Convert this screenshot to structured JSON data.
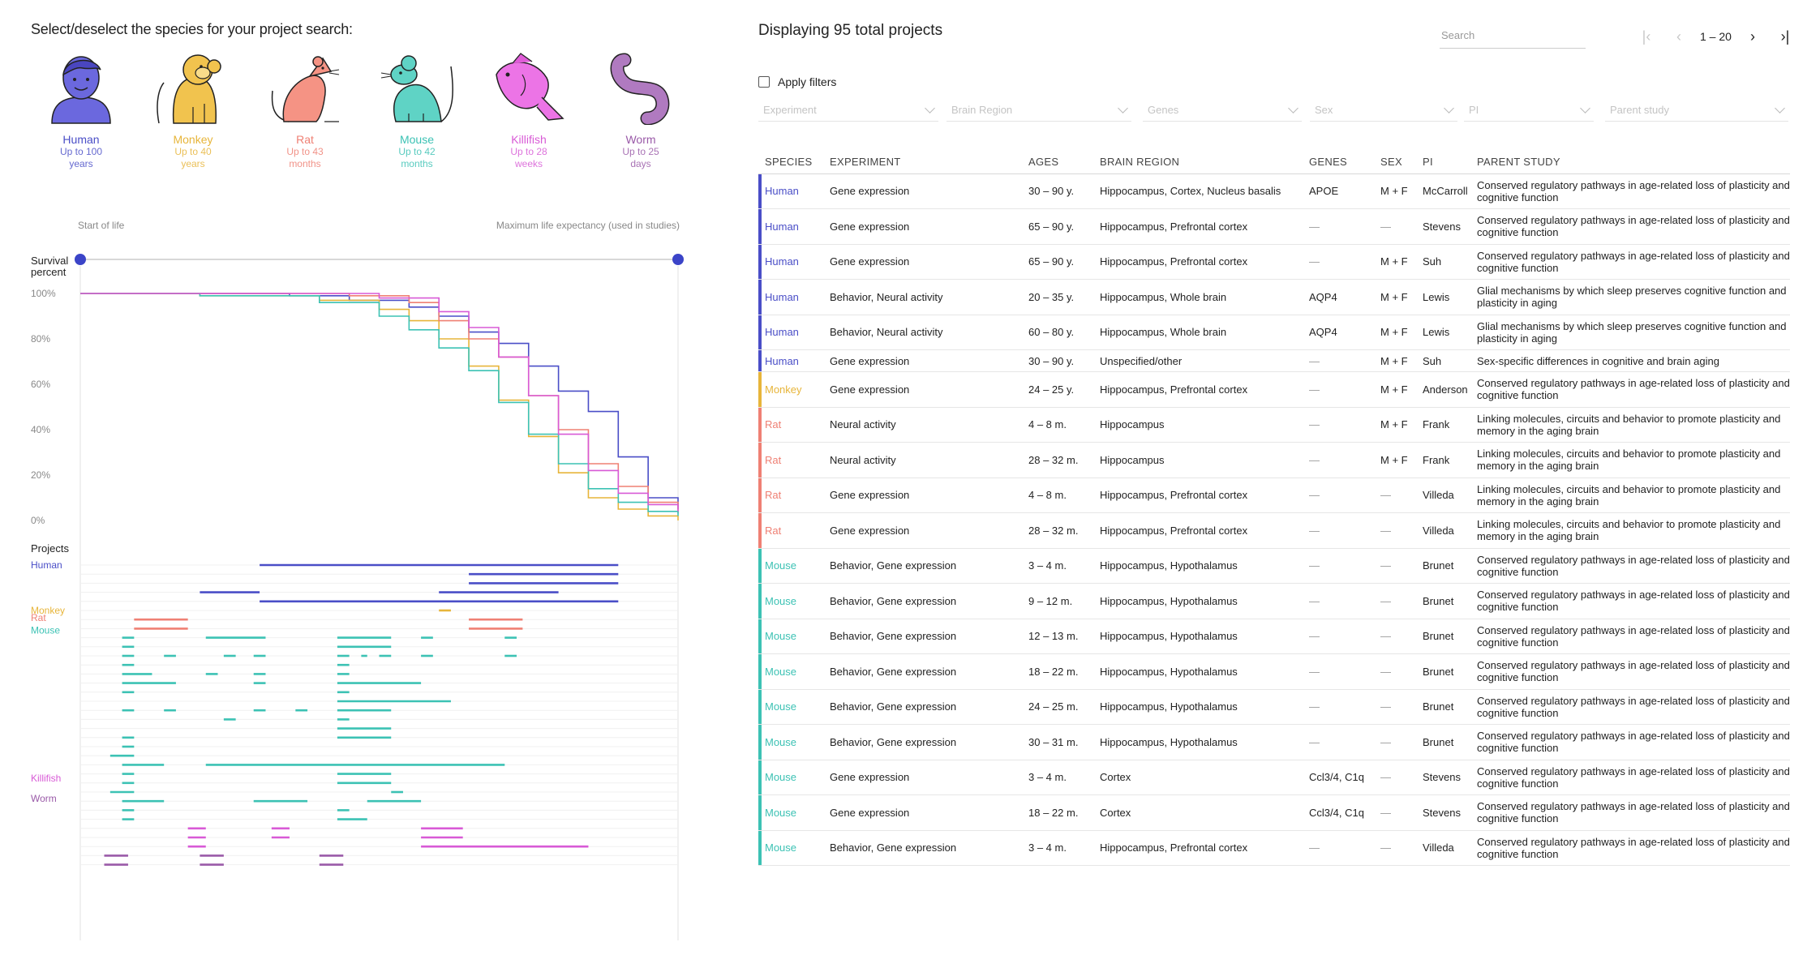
{
  "species_panel": {
    "prompt": "Select/deselect the species for your project search:",
    "species": [
      {
        "name": "Human",
        "line1": "Up to 100",
        "line2": "years",
        "color": "#4a4ec7",
        "icon": "human-icon"
      },
      {
        "name": "Monkey",
        "line1": "Up to 40",
        "line2": "years",
        "color": "#e7b53a",
        "icon": "monkey-icon"
      },
      {
        "name": "Rat",
        "line1": "Up to 43",
        "line2": "months",
        "color": "#ef8074",
        "icon": "rat-icon"
      },
      {
        "name": "Mouse",
        "line1": "Up to 42",
        "line2": "months",
        "color": "#3cc2b4",
        "icon": "mouse-icon"
      },
      {
        "name": "Killifish",
        "line1": "Up to 28",
        "line2": "weeks",
        "color": "#d85ad6",
        "icon": "killifish-icon"
      },
      {
        "name": "Worm",
        "line1": "Up to 25",
        "line2": "days",
        "color": "#9a5aa8",
        "icon": "worm-icon"
      }
    ]
  },
  "survival_chart": {
    "start_label": "Start of life",
    "end_label": "Maximum life expectancy (used in studies)",
    "y_title_1": "Survival",
    "y_title_2": "percent",
    "y_ticks": [
      "100%",
      "80%",
      "60%",
      "40%",
      "20%",
      "0%"
    ],
    "projects_label": "Projects",
    "lane_labels": [
      {
        "name": "Human",
        "color": "#4a4ec7"
      },
      {
        "name": "Monkey",
        "color": "#e7b53a"
      },
      {
        "name": "Rat",
        "color": "#ef8074"
      },
      {
        "name": "Mouse",
        "color": "#3cc2b4"
      },
      {
        "name": "Killifish",
        "color": "#d85ad6"
      },
      {
        "name": "Worm",
        "color": "#9a5aa8"
      }
    ]
  },
  "chart_data": {
    "type": "line",
    "title": "",
    "xlabel": "",
    "ylabel": "Survival percent",
    "xlim": [
      0,
      1
    ],
    "ylim": [
      0,
      100
    ],
    "series": [
      {
        "name": "Human",
        "color": "#4a4ec7",
        "x": [
          0,
          0.2,
          0.35,
          0.45,
          0.55,
          0.6,
          0.65,
          0.7,
          0.75,
          0.8,
          0.85,
          0.9,
          0.95,
          1.0
        ],
        "y": [
          100,
          100,
          99,
          97,
          94,
          90,
          83,
          78,
          68,
          57,
          48,
          28,
          10,
          5
        ]
      },
      {
        "name": "Monkey",
        "color": "#e7b53a",
        "x": [
          0,
          0.2,
          0.4,
          0.5,
          0.55,
          0.6,
          0.65,
          0.7,
          0.75,
          0.8,
          0.85,
          0.9,
          0.95,
          1.0
        ],
        "y": [
          100,
          99,
          97,
          93,
          88,
          80,
          68,
          53,
          37,
          21,
          10,
          5,
          2,
          0
        ]
      },
      {
        "name": "Rat",
        "color": "#ef8074",
        "x": [
          0,
          0.25,
          0.45,
          0.55,
          0.6,
          0.65,
          0.7,
          0.75,
          0.8,
          0.85,
          0.9,
          0.95,
          1.0
        ],
        "y": [
          100,
          100,
          99,
          96,
          88,
          80,
          72,
          55,
          40,
          25,
          15,
          8,
          3
        ]
      },
      {
        "name": "Mouse",
        "color": "#3cc2b4",
        "x": [
          0,
          0.2,
          0.4,
          0.5,
          0.55,
          0.6,
          0.65,
          0.7,
          0.75,
          0.8,
          0.85,
          0.9,
          0.95,
          1.0
        ],
        "y": [
          100,
          99,
          96,
          90,
          84,
          76,
          66,
          52,
          38,
          25,
          14,
          8,
          4,
          2
        ]
      },
      {
        "name": "Killifish",
        "color": "#d85ad6",
        "x": [
          0,
          0.3,
          0.5,
          0.6,
          0.65,
          0.7,
          0.75,
          0.8,
          0.85,
          0.9,
          0.95,
          1.0
        ],
        "y": [
          100,
          100,
          98,
          92,
          85,
          72,
          55,
          38,
          22,
          12,
          7,
          4
        ]
      }
    ]
  },
  "lane_bars": [
    {
      "c": "#4a4ec7",
      "a": 0.3,
      "b": 0.9,
      "row": 0
    },
    {
      "c": "#4a4ec7",
      "a": 0.65,
      "b": 0.9,
      "row": 1
    },
    {
      "c": "#4a4ec7",
      "a": 0.65,
      "b": 0.9,
      "row": 2
    },
    {
      "c": "#4a4ec7",
      "a": 0.2,
      "b": 0.3,
      "row": 3
    },
    {
      "c": "#4a4ec7",
      "a": 0.6,
      "b": 0.8,
      "row": 3
    },
    {
      "c": "#4a4ec7",
      "a": 0.3,
      "b": 0.9,
      "row": 4
    },
    {
      "c": "#e7b53a",
      "a": 0.6,
      "b": 0.62,
      "row": 5
    },
    {
      "c": "#ef8074",
      "a": 0.09,
      "b": 0.18,
      "row": 6
    },
    {
      "c": "#ef8074",
      "a": 0.65,
      "b": 0.74,
      "row": 6
    },
    {
      "c": "#ef8074",
      "a": 0.09,
      "b": 0.18,
      "row": 7
    },
    {
      "c": "#ef8074",
      "a": 0.65,
      "b": 0.74,
      "row": 7
    },
    {
      "c": "#3cc2b4",
      "a": 0.07,
      "b": 0.09,
      "row": 8
    },
    {
      "c": "#3cc2b4",
      "a": 0.21,
      "b": 0.31,
      "row": 8
    },
    {
      "c": "#3cc2b4",
      "a": 0.43,
      "b": 0.52,
      "row": 8
    },
    {
      "c": "#3cc2b4",
      "a": 0.57,
      "b": 0.59,
      "row": 8
    },
    {
      "c": "#3cc2b4",
      "a": 0.71,
      "b": 0.73,
      "row": 8
    },
    {
      "c": "#3cc2b4",
      "a": 0.07,
      "b": 0.09,
      "row": 9
    },
    {
      "c": "#3cc2b4",
      "a": 0.43,
      "b": 0.52,
      "row": 9
    },
    {
      "c": "#3cc2b4",
      "a": 0.07,
      "b": 0.09,
      "row": 10
    },
    {
      "c": "#3cc2b4",
      "a": 0.14,
      "b": 0.16,
      "row": 10
    },
    {
      "c": "#3cc2b4",
      "a": 0.24,
      "b": 0.26,
      "row": 10
    },
    {
      "c": "#3cc2b4",
      "a": 0.29,
      "b": 0.31,
      "row": 10
    },
    {
      "c": "#3cc2b4",
      "a": 0.43,
      "b": 0.45,
      "row": 10
    },
    {
      "c": "#3cc2b4",
      "a": 0.47,
      "b": 0.48,
      "row": 10
    },
    {
      "c": "#3cc2b4",
      "a": 0.5,
      "b": 0.52,
      "row": 10
    },
    {
      "c": "#3cc2b4",
      "a": 0.57,
      "b": 0.59,
      "row": 10
    },
    {
      "c": "#3cc2b4",
      "a": 0.71,
      "b": 0.73,
      "row": 10
    },
    {
      "c": "#3cc2b4",
      "a": 0.07,
      "b": 0.09,
      "row": 11
    },
    {
      "c": "#3cc2b4",
      "a": 0.43,
      "b": 0.45,
      "row": 11
    },
    {
      "c": "#3cc2b4",
      "a": 0.07,
      "b": 0.12,
      "row": 12
    },
    {
      "c": "#3cc2b4",
      "a": 0.21,
      "b": 0.23,
      "row": 12
    },
    {
      "c": "#3cc2b4",
      "a": 0.29,
      "b": 0.31,
      "row": 12
    },
    {
      "c": "#3cc2b4",
      "a": 0.43,
      "b": 0.45,
      "row": 12
    },
    {
      "c": "#3cc2b4",
      "a": 0.07,
      "b": 0.16,
      "row": 13
    },
    {
      "c": "#3cc2b4",
      "a": 0.29,
      "b": 0.31,
      "row": 13
    },
    {
      "c": "#3cc2b4",
      "a": 0.43,
      "b": 0.57,
      "row": 13
    },
    {
      "c": "#3cc2b4",
      "a": 0.07,
      "b": 0.09,
      "row": 14
    },
    {
      "c": "#3cc2b4",
      "a": 0.43,
      "b": 0.45,
      "row": 14
    },
    {
      "c": "#3cc2b4",
      "a": 0.43,
      "b": 0.62,
      "row": 15
    },
    {
      "c": "#3cc2b4",
      "a": 0.07,
      "b": 0.09,
      "row": 16
    },
    {
      "c": "#3cc2b4",
      "a": 0.14,
      "b": 0.16,
      "row": 16
    },
    {
      "c": "#3cc2b4",
      "a": 0.29,
      "b": 0.31,
      "row": 16
    },
    {
      "c": "#3cc2b4",
      "a": 0.36,
      "b": 0.38,
      "row": 16
    },
    {
      "c": "#3cc2b4",
      "a": 0.43,
      "b": 0.52,
      "row": 16
    },
    {
      "c": "#3cc2b4",
      "a": 0.24,
      "b": 0.26,
      "row": 17
    },
    {
      "c": "#3cc2b4",
      "a": 0.43,
      "b": 0.45,
      "row": 17
    },
    {
      "c": "#3cc2b4",
      "a": 0.43,
      "b": 0.52,
      "row": 18
    },
    {
      "c": "#3cc2b4",
      "a": 0.07,
      "b": 0.09,
      "row": 19
    },
    {
      "c": "#3cc2b4",
      "a": 0.43,
      "b": 0.52,
      "row": 19
    },
    {
      "c": "#3cc2b4",
      "a": 0.07,
      "b": 0.09,
      "row": 20
    },
    {
      "c": "#3cc2b4",
      "a": 0.05,
      "b": 0.09,
      "row": 21
    },
    {
      "c": "#3cc2b4",
      "a": 0.07,
      "b": 0.14,
      "row": 22
    },
    {
      "c": "#3cc2b4",
      "a": 0.21,
      "b": 0.71,
      "row": 22
    },
    {
      "c": "#3cc2b4",
      "a": 0.07,
      "b": 0.09,
      "row": 23
    },
    {
      "c": "#3cc2b4",
      "a": 0.43,
      "b": 0.52,
      "row": 23
    },
    {
      "c": "#3cc2b4",
      "a": 0.07,
      "b": 0.09,
      "row": 24
    },
    {
      "c": "#3cc2b4",
      "a": 0.43,
      "b": 0.52,
      "row": 24
    },
    {
      "c": "#3cc2b4",
      "a": 0.05,
      "b": 0.09,
      "row": 25
    },
    {
      "c": "#3cc2b4",
      "a": 0.52,
      "b": 0.54,
      "row": 25
    },
    {
      "c": "#3cc2b4",
      "a": 0.07,
      "b": 0.14,
      "row": 26
    },
    {
      "c": "#3cc2b4",
      "a": 0.29,
      "b": 0.38,
      "row": 26
    },
    {
      "c": "#3cc2b4",
      "a": 0.48,
      "b": 0.57,
      "row": 26
    },
    {
      "c": "#3cc2b4",
      "a": 0.07,
      "b": 0.09,
      "row": 27
    },
    {
      "c": "#3cc2b4",
      "a": 0.43,
      "b": 0.45,
      "row": 27
    },
    {
      "c": "#3cc2b4",
      "a": 0.07,
      "b": 0.09,
      "row": 28
    },
    {
      "c": "#3cc2b4",
      "a": 0.43,
      "b": 0.48,
      "row": 28
    },
    {
      "c": "#d85ad6",
      "a": 0.18,
      "b": 0.21,
      "row": 29
    },
    {
      "c": "#d85ad6",
      "a": 0.32,
      "b": 0.35,
      "row": 29
    },
    {
      "c": "#d85ad6",
      "a": 0.57,
      "b": 0.64,
      "row": 29
    },
    {
      "c": "#d85ad6",
      "a": 0.18,
      "b": 0.21,
      "row": 30
    },
    {
      "c": "#d85ad6",
      "a": 0.32,
      "b": 0.35,
      "row": 30
    },
    {
      "c": "#d85ad6",
      "a": 0.57,
      "b": 0.64,
      "row": 30
    },
    {
      "c": "#d85ad6",
      "a": 0.18,
      "b": 0.21,
      "row": 31
    },
    {
      "c": "#d85ad6",
      "a": 0.57,
      "b": 0.85,
      "row": 31
    },
    {
      "c": "#9a5aa8",
      "a": 0.04,
      "b": 0.08,
      "row": 32
    },
    {
      "c": "#9a5aa8",
      "a": 0.2,
      "b": 0.24,
      "row": 32
    },
    {
      "c": "#9a5aa8",
      "a": 0.4,
      "b": 0.44,
      "row": 32
    },
    {
      "c": "#9a5aa8",
      "a": 0.04,
      "b": 0.08,
      "row": 33
    },
    {
      "c": "#9a5aa8",
      "a": 0.2,
      "b": 0.24,
      "row": 33
    },
    {
      "c": "#9a5aa8",
      "a": 0.4,
      "b": 0.44,
      "row": 33
    }
  ],
  "projects_panel": {
    "title": "Displaying 95 total projects",
    "search_placeholder": "Search",
    "page_range": "1 – 20",
    "apply_filters_label": "Apply filters",
    "filters": [
      "Experiment",
      "Brain Region",
      "Genes",
      "Sex",
      "PI",
      "Parent study"
    ],
    "columns": [
      "SPECIES",
      "EXPERIMENT",
      "AGES",
      "BRAIN REGION",
      "GENES",
      "SEX",
      "PI",
      "PARENT STUDY"
    ],
    "rows": [
      {
        "species": "Human",
        "color": "#4a4ec7",
        "experiment": "Gene expression",
        "ages": "30 – 90 y.",
        "region": "Hippocampus, Cortex, Nucleus basalis",
        "genes": "APOE",
        "sex": "M + F",
        "pi": "McCarroll",
        "study": "Conserved regulatory pathways in age-related loss of plasticity and cognitive function"
      },
      {
        "species": "Human",
        "color": "#4a4ec7",
        "experiment": "Gene expression",
        "ages": "65 – 90 y.",
        "region": "Hippocampus, Prefrontal cortex",
        "genes": "—",
        "sex": "—",
        "pi": "Stevens",
        "study": "Conserved regulatory pathways in age-related loss of plasticity and cognitive function"
      },
      {
        "species": "Human",
        "color": "#4a4ec7",
        "experiment": "Gene expression",
        "ages": "65 – 90 y.",
        "region": "Hippocampus, Prefrontal cortex",
        "genes": "—",
        "sex": "M + F",
        "pi": "Suh",
        "study": "Conserved regulatory pathways in age-related loss of plasticity and cognitive function"
      },
      {
        "species": "Human",
        "color": "#4a4ec7",
        "experiment": "Behavior, Neural activity",
        "ages": "20 – 35 y.",
        "region": "Hippocampus, Whole brain",
        "genes": "AQP4",
        "sex": "M + F",
        "pi": "Lewis",
        "study": "Glial mechanisms by which sleep preserves cognitive function and plasticity in aging"
      },
      {
        "species": "Human",
        "color": "#4a4ec7",
        "experiment": "Behavior, Neural activity",
        "ages": "60 – 80 y.",
        "region": "Hippocampus, Whole brain",
        "genes": "AQP4",
        "sex": "M + F",
        "pi": "Lewis",
        "study": "Glial mechanisms by which sleep preserves cognitive function and plasticity in aging"
      },
      {
        "species": "Human",
        "color": "#4a4ec7",
        "experiment": "Gene expression",
        "ages": "30 – 90 y.",
        "region": "Unspecified/other",
        "genes": "—",
        "sex": "M + F",
        "pi": "Suh",
        "study": "Sex-specific differences in cognitive and brain aging"
      },
      {
        "species": "Monkey",
        "color": "#e7b53a",
        "experiment": "Gene expression",
        "ages": "24 – 25 y.",
        "region": "Hippocampus, Prefrontal cortex",
        "genes": "—",
        "sex": "M + F",
        "pi": "Anderson",
        "study": "Conserved regulatory pathways in age-related loss of plasticity and cognitive function"
      },
      {
        "species": "Rat",
        "color": "#ef8074",
        "experiment": "Neural activity",
        "ages": "4 – 8 m.",
        "region": "Hippocampus",
        "genes": "—",
        "sex": "M + F",
        "pi": "Frank",
        "study": "Linking molecules, circuits and behavior to promote plasticity and memory in the aging brain"
      },
      {
        "species": "Rat",
        "color": "#ef8074",
        "experiment": "Neural activity",
        "ages": "28 – 32 m.",
        "region": "Hippocampus",
        "genes": "—",
        "sex": "M + F",
        "pi": "Frank",
        "study": "Linking molecules, circuits and behavior to promote plasticity and memory in the aging brain"
      },
      {
        "species": "Rat",
        "color": "#ef8074",
        "experiment": "Gene expression",
        "ages": "4 – 8 m.",
        "region": "Hippocampus, Prefrontal cortex",
        "genes": "—",
        "sex": "—",
        "pi": "Villeda",
        "study": "Linking molecules, circuits and behavior to promote plasticity and memory in the aging brain"
      },
      {
        "species": "Rat",
        "color": "#ef8074",
        "experiment": "Gene expression",
        "ages": "28 – 32 m.",
        "region": "Hippocampus, Prefrontal cortex",
        "genes": "—",
        "sex": "—",
        "pi": "Villeda",
        "study": "Linking molecules, circuits and behavior to promote plasticity and memory in the aging brain"
      },
      {
        "species": "Mouse",
        "color": "#3cc2b4",
        "experiment": "Behavior, Gene expression",
        "ages": "3 – 4 m.",
        "region": "Hippocampus, Hypothalamus",
        "genes": "—",
        "sex": "—",
        "pi": "Brunet",
        "study": "Conserved regulatory pathways in age-related loss of plasticity and cognitive function"
      },
      {
        "species": "Mouse",
        "color": "#3cc2b4",
        "experiment": "Behavior, Gene expression",
        "ages": "9 – 12 m.",
        "region": "Hippocampus, Hypothalamus",
        "genes": "—",
        "sex": "—",
        "pi": "Brunet",
        "study": "Conserved regulatory pathways in age-related loss of plasticity and cognitive function"
      },
      {
        "species": "Mouse",
        "color": "#3cc2b4",
        "experiment": "Behavior, Gene expression",
        "ages": "12 – 13 m.",
        "region": "Hippocampus, Hypothalamus",
        "genes": "—",
        "sex": "—",
        "pi": "Brunet",
        "study": "Conserved regulatory pathways in age-related loss of plasticity and cognitive function"
      },
      {
        "species": "Mouse",
        "color": "#3cc2b4",
        "experiment": "Behavior, Gene expression",
        "ages": "18 – 22 m.",
        "region": "Hippocampus, Hypothalamus",
        "genes": "—",
        "sex": "—",
        "pi": "Brunet",
        "study": "Conserved regulatory pathways in age-related loss of plasticity and cognitive function"
      },
      {
        "species": "Mouse",
        "color": "#3cc2b4",
        "experiment": "Behavior, Gene expression",
        "ages": "24 – 25 m.",
        "region": "Hippocampus, Hypothalamus",
        "genes": "—",
        "sex": "—",
        "pi": "Brunet",
        "study": "Conserved regulatory pathways in age-related loss of plasticity and cognitive function"
      },
      {
        "species": "Mouse",
        "color": "#3cc2b4",
        "experiment": "Behavior, Gene expression",
        "ages": "30 – 31 m.",
        "region": "Hippocampus, Hypothalamus",
        "genes": "—",
        "sex": "—",
        "pi": "Brunet",
        "study": "Conserved regulatory pathways in age-related loss of plasticity and cognitive function"
      },
      {
        "species": "Mouse",
        "color": "#3cc2b4",
        "experiment": "Gene expression",
        "ages": "3 – 4 m.",
        "region": "Cortex",
        "genes": "Ccl3/4, C1q",
        "sex": "—",
        "pi": "Stevens",
        "study": "Conserved regulatory pathways in age-related loss of plasticity and cognitive function"
      },
      {
        "species": "Mouse",
        "color": "#3cc2b4",
        "experiment": "Gene expression",
        "ages": "18 – 22 m.",
        "region": "Cortex",
        "genes": "Ccl3/4, C1q",
        "sex": "—",
        "pi": "Stevens",
        "study": "Conserved regulatory pathways in age-related loss of plasticity and cognitive function"
      },
      {
        "species": "Mouse",
        "color": "#3cc2b4",
        "experiment": "Behavior, Gene expression",
        "ages": "3 – 4 m.",
        "region": "Hippocampus, Prefrontal cortex",
        "genes": "—",
        "sex": "—",
        "pi": "Villeda",
        "study": "Conserved regulatory pathways in age-related loss of plasticity and cognitive function"
      }
    ]
  }
}
